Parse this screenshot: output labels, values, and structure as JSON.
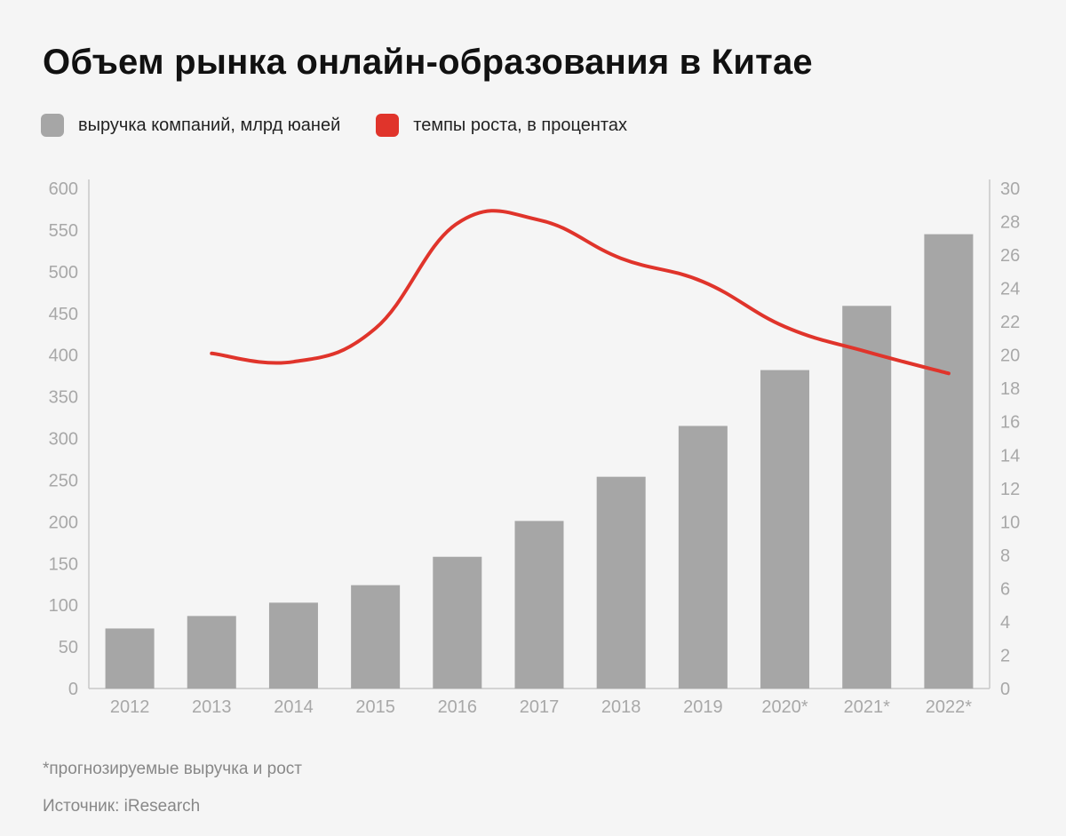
{
  "title": "Объем рынка онлайн-образования в Китае",
  "legend": {
    "revenue_label": "выручка компаний, млрд юаней",
    "growth_label": "темпы роста, в процентах"
  },
  "colors": {
    "bar": "#a6a6a6",
    "line": "#e0342b",
    "axis_text": "#a8a8a8",
    "axis_line": "#c8c8c8"
  },
  "chart_data": {
    "type": "bar",
    "categories": [
      "2012",
      "2013",
      "2014",
      "2015",
      "2016",
      "2017",
      "2018",
      "2019",
      "2020*",
      "2021*",
      "2022*"
    ],
    "series": [
      {
        "name": "выручка компаний, млрд юаней",
        "type": "bar",
        "axis": "left",
        "values": [
          72,
          87,
          103,
          124,
          158,
          201,
          254,
          315,
          382,
          459,
          545
        ]
      },
      {
        "name": "темпы роста, в процентах",
        "type": "line",
        "axis": "right",
        "values": [
          null,
          20.1,
          19.6,
          21.6,
          27.9,
          28.1,
          25.8,
          24.4,
          21.7,
          20.2,
          18.9
        ]
      }
    ],
    "y_left": {
      "min": 0,
      "max": 600,
      "ticks": [
        "0",
        "50",
        "100",
        "150",
        "200",
        "250",
        "300",
        "350",
        "400",
        "450",
        "500",
        "550",
        "600"
      ]
    },
    "y_right": {
      "min": 0,
      "max": 30,
      "ticks": [
        "0",
        "2",
        "4",
        "6",
        "8",
        "10",
        "12",
        "14",
        "16",
        "18",
        "20",
        "22",
        "24",
        "26",
        "28",
        "30"
      ]
    },
    "grid": false
  },
  "footnote": "*прогнозируемые выручка и рост",
  "source": "Источник: iResearch"
}
